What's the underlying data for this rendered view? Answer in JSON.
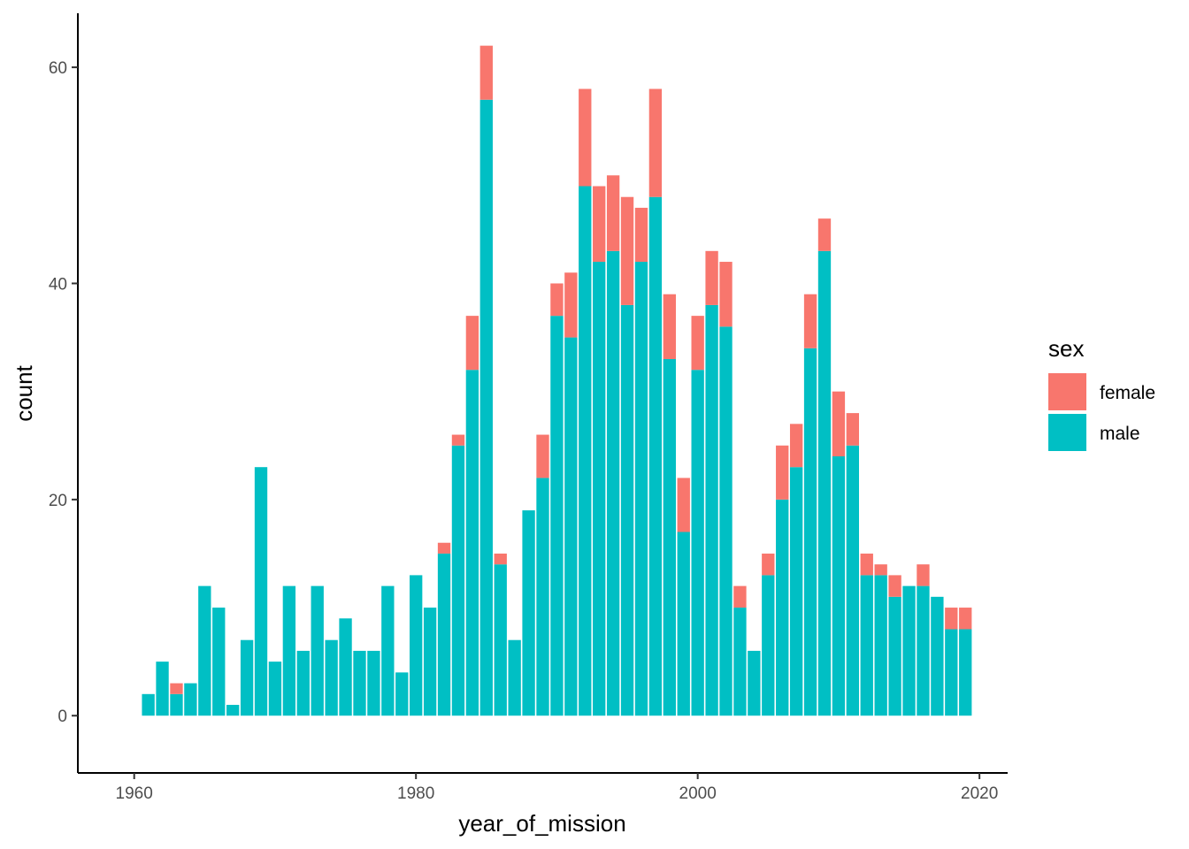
{
  "chart_data": {
    "type": "bar",
    "stacked": true,
    "xlabel": "year_of_mission",
    "ylabel": "count",
    "xlim": [
      1956,
      2022
    ],
    "ylim": [
      -5.3,
      65
    ],
    "xticks": [
      "1960",
      "1980",
      "2000",
      "2020"
    ],
    "yticks": [
      "0",
      "20",
      "40",
      "60"
    ],
    "grid": false,
    "legend": {
      "title": "sex",
      "position": "right",
      "entries": [
        {
          "label": "female",
          "color": "#F8766D"
        },
        {
          "label": "male",
          "color": "#00BFC4"
        }
      ]
    },
    "x": [
      1961,
      1962,
      1963,
      1964,
      1965,
      1966,
      1967,
      1968,
      1969,
      1970,
      1971,
      1972,
      1973,
      1974,
      1975,
      1976,
      1977,
      1978,
      1979,
      1980,
      1981,
      1982,
      1983,
      1984,
      1985,
      1986,
      1987,
      1988,
      1989,
      1990,
      1991,
      1992,
      1993,
      1994,
      1995,
      1996,
      1997,
      1998,
      1999,
      2000,
      2001,
      2002,
      2003,
      2004,
      2005,
      2006,
      2007,
      2008,
      2009,
      2010,
      2011,
      2012,
      2013,
      2014,
      2015,
      2016,
      2017,
      2018,
      2019
    ],
    "series": [
      {
        "name": "male",
        "color": "#00BFC4",
        "values": [
          2,
          5,
          2,
          3,
          12,
          10,
          1,
          7,
          23,
          5,
          12,
          6,
          12,
          7,
          9,
          6,
          6,
          12,
          4,
          13,
          10,
          15,
          25,
          32,
          57,
          14,
          7,
          19,
          22,
          37,
          35,
          49,
          42,
          43,
          38,
          42,
          48,
          33,
          17,
          32,
          38,
          36,
          10,
          6,
          13,
          20,
          23,
          34,
          43,
          24,
          25,
          13,
          13,
          11,
          12,
          12,
          11,
          8,
          8
        ]
      },
      {
        "name": "female",
        "color": "#F8766D",
        "values": [
          0,
          0,
          1,
          0,
          0,
          0,
          0,
          0,
          0,
          0,
          0,
          0,
          0,
          0,
          0,
          0,
          0,
          0,
          0,
          0,
          0,
          1,
          1,
          5,
          5,
          1,
          0,
          0,
          4,
          3,
          6,
          9,
          7,
          7,
          10,
          5,
          10,
          6,
          5,
          5,
          5,
          6,
          2,
          0,
          2,
          5,
          4,
          5,
          3,
          6,
          3,
          2,
          1,
          2,
          0,
          2,
          0,
          2,
          2
        ]
      }
    ]
  }
}
